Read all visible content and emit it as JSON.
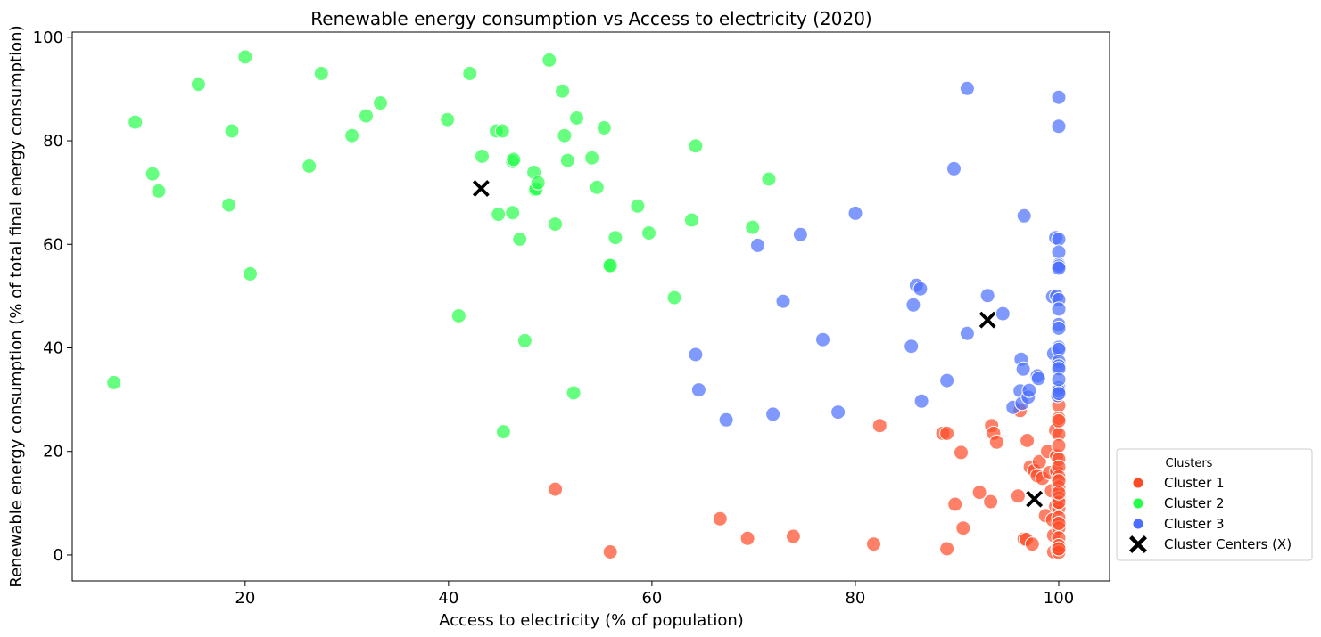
{
  "chart_data": {
    "type": "scatter",
    "title": "Renewable energy consumption vs Access to electricity (2020)",
    "xlabel": "Access to electricity (% of population)",
    "ylabel": "Renewable energy consumption (% of total final energy consumption)",
    "xlim": [
      3,
      105
    ],
    "ylim": [
      -5,
      101
    ],
    "xticks": [
      20,
      40,
      60,
      80,
      100
    ],
    "yticks": [
      0,
      20,
      40,
      60,
      80,
      100
    ],
    "grid": false,
    "legend": {
      "title": "Clusters",
      "placement": "outside-right-bottom"
    },
    "series": [
      {
        "name": "Cluster 1",
        "color": "#ff4a26",
        "points": [
          [
            50.5,
            12.7
          ],
          [
            55.9,
            0.6
          ],
          [
            66.7,
            7.0
          ],
          [
            69.4,
            3.2
          ],
          [
            73.9,
            3.6
          ],
          [
            81.8,
            2.1
          ],
          [
            82.4,
            25.0
          ],
          [
            88.6,
            23.5
          ],
          [
            89.0,
            23.5
          ],
          [
            89.0,
            1.2
          ],
          [
            89.8,
            9.8
          ],
          [
            90.4,
            19.8
          ],
          [
            90.6,
            5.2
          ],
          [
            92.2,
            12.1
          ],
          [
            93.3,
            10.3
          ],
          [
            93.4,
            25.0
          ],
          [
            93.6,
            23.5
          ],
          [
            93.9,
            21.8
          ],
          [
            96.0,
            11.4
          ],
          [
            96.2,
            27.9
          ],
          [
            96.6,
            3.1
          ],
          [
            96.8,
            3.0
          ],
          [
            96.9,
            22.1
          ],
          [
            97.2,
            17.0
          ],
          [
            97.4,
            2.1
          ],
          [
            97.6,
            16.3
          ],
          [
            97.9,
            15.3
          ],
          [
            98.1,
            18.0
          ],
          [
            98.4,
            14.8
          ],
          [
            98.7,
            7.6
          ],
          [
            98.9,
            20.0
          ],
          [
            99.1,
            15.9
          ],
          [
            99.3,
            12.4
          ],
          [
            99.4,
            6.8
          ],
          [
            99.5,
            3.8
          ],
          [
            99.5,
            0.6
          ],
          [
            99.7,
            24.1
          ],
          [
            99.7,
            9.4
          ],
          [
            99.8,
            16.2
          ],
          [
            99.8,
            19.1
          ],
          [
            99.9,
            1.1
          ],
          [
            100,
            28.9
          ],
          [
            100,
            26.4
          ],
          [
            100,
            23.3
          ],
          [
            100,
            21.1
          ],
          [
            100,
            18.5
          ],
          [
            100,
            17.0
          ],
          [
            100,
            15.1
          ],
          [
            100,
            13.1
          ],
          [
            100,
            11.0
          ],
          [
            100,
            9.0
          ],
          [
            100,
            7.2
          ],
          [
            100,
            5.2
          ],
          [
            100,
            3.3
          ],
          [
            100,
            1.8
          ],
          [
            100,
            0.5
          ],
          [
            100,
            1.2
          ],
          [
            100,
            25.9
          ],
          [
            100,
            14.3
          ],
          [
            100,
            10.2
          ],
          [
            100,
            12.0
          ],
          [
            100,
            6.1
          ]
        ]
      },
      {
        "name": "Cluster 2",
        "color": "#26ff4a",
        "points": [
          [
            7.1,
            33.3
          ],
          [
            9.2,
            83.6
          ],
          [
            10.9,
            73.6
          ],
          [
            11.5,
            70.3
          ],
          [
            15.4,
            90.9
          ],
          [
            18.4,
            67.6
          ],
          [
            18.7,
            81.9
          ],
          [
            20.0,
            96.2
          ],
          [
            20.5,
            54.3
          ],
          [
            26.3,
            75.1
          ],
          [
            27.5,
            93.0
          ],
          [
            30.5,
            81.0
          ],
          [
            31.9,
            84.8
          ],
          [
            33.3,
            87.3
          ],
          [
            39.9,
            84.1
          ],
          [
            41.0,
            46.2
          ],
          [
            42.1,
            93.0
          ],
          [
            43.3,
            77.0
          ],
          [
            44.9,
            65.8
          ],
          [
            44.7,
            81.9
          ],
          [
            45.3,
            81.9
          ],
          [
            45.4,
            23.8
          ],
          [
            46.3,
            66.1
          ],
          [
            46.3,
            76.0
          ],
          [
            46.4,
            76.4
          ],
          [
            47.0,
            61.0
          ],
          [
            47.5,
            41.4
          ],
          [
            48.4,
            73.9
          ],
          [
            48.5,
            70.5
          ],
          [
            48.6,
            70.7
          ],
          [
            48.8,
            71.9
          ],
          [
            49.9,
            95.6
          ],
          [
            50.5,
            63.9
          ],
          [
            51.2,
            89.6
          ],
          [
            51.4,
            81.0
          ],
          [
            51.7,
            76.2
          ],
          [
            52.3,
            31.3
          ],
          [
            52.6,
            84.4
          ],
          [
            54.1,
            76.7
          ],
          [
            54.6,
            71.0
          ],
          [
            55.3,
            82.5
          ],
          [
            55.8,
            55.9
          ],
          [
            55.9,
            55.9
          ],
          [
            56.4,
            61.3
          ],
          [
            58.6,
            67.4
          ],
          [
            59.7,
            62.2
          ],
          [
            62.2,
            49.7
          ],
          [
            63.9,
            64.7
          ],
          [
            64.3,
            79.0
          ],
          [
            69.9,
            63.3
          ],
          [
            71.5,
            72.6
          ]
        ]
      },
      {
        "name": "Cluster 3",
        "color": "#4a6eff",
        "points": [
          [
            64.3,
            38.7
          ],
          [
            64.6,
            31.9
          ],
          [
            67.3,
            26.1
          ],
          [
            70.4,
            59.8
          ],
          [
            71.9,
            27.2
          ],
          [
            72.9,
            49.0
          ],
          [
            74.6,
            61.9
          ],
          [
            76.8,
            41.6
          ],
          [
            78.3,
            27.6
          ],
          [
            80.0,
            66.0
          ],
          [
            85.5,
            40.3
          ],
          [
            85.7,
            48.3
          ],
          [
            86.0,
            52.1
          ],
          [
            86.4,
            51.4
          ],
          [
            86.5,
            29.7
          ],
          [
            89.0,
            33.7
          ],
          [
            89.7,
            74.6
          ],
          [
            91.0,
            90.1
          ],
          [
            91.0,
            42.8
          ],
          [
            93.0,
            50.1
          ],
          [
            94.5,
            46.6
          ],
          [
            95.5,
            28.5
          ],
          [
            96.3,
            37.8
          ],
          [
            96.2,
            31.7
          ],
          [
            96.4,
            29.3
          ],
          [
            96.5,
            35.9
          ],
          [
            96.6,
            65.5
          ],
          [
            97.0,
            30.5
          ],
          [
            97.1,
            31.8
          ],
          [
            97.9,
            34.6
          ],
          [
            98.0,
            34.1
          ],
          [
            99.4,
            49.9
          ],
          [
            99.5,
            38.9
          ],
          [
            99.7,
            61.3
          ],
          [
            99.8,
            50.0
          ],
          [
            99.9,
            30.8
          ],
          [
            100,
            88.4
          ],
          [
            100,
            82.8
          ],
          [
            100,
            61.0
          ],
          [
            100,
            58.5
          ],
          [
            100,
            56.1
          ],
          [
            100,
            55.8
          ],
          [
            100,
            55.4
          ],
          [
            100,
            49.3
          ],
          [
            100,
            47.5
          ],
          [
            100,
            44.5
          ],
          [
            100,
            43.8
          ],
          [
            100,
            40.1
          ],
          [
            100,
            39.7
          ],
          [
            100,
            37.4
          ],
          [
            100,
            36.5
          ],
          [
            100,
            36.0
          ],
          [
            100,
            32.3
          ],
          [
            100,
            31.7
          ],
          [
            100,
            31.2
          ],
          [
            100,
            33.9
          ]
        ]
      }
    ],
    "centers": {
      "name": "Cluster Centers (X)",
      "color": "#000000",
      "points": [
        [
          43.2,
          70.8
        ],
        [
          93.0,
          45.4
        ],
        [
          97.6,
          10.8
        ]
      ]
    }
  }
}
